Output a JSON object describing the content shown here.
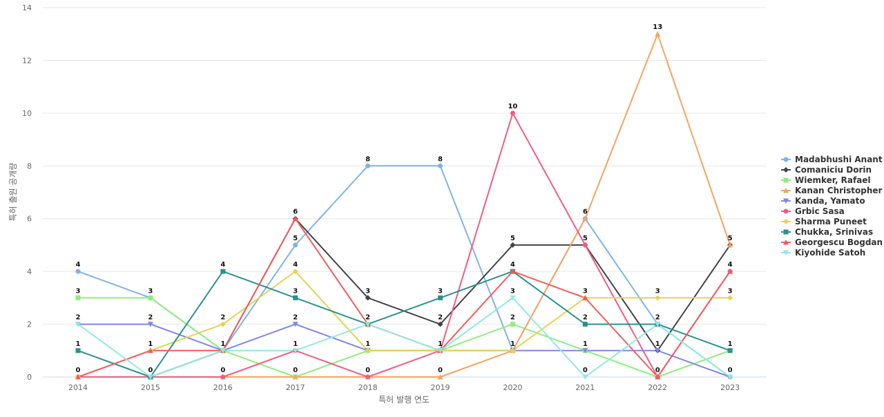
{
  "chart_data": {
    "type": "line",
    "title": "",
    "xlabel": "특허 발행 연도",
    "ylabel": "특허 출원 공개량",
    "categories": [
      "2014",
      "2015",
      "2016",
      "2017",
      "2018",
      "2019",
      "2020",
      "2021",
      "2022",
      "2023"
    ],
    "ylim": [
      0,
      14
    ],
    "yticks": [
      "0",
      "2",
      "4",
      "6",
      "8",
      "10",
      "12",
      "14"
    ],
    "grid": true,
    "legend_position": "right",
    "series": [
      {
        "name": "Madabhushi Anant",
        "color": "#7eb3e6",
        "marker": "circle",
        "values": [
          4,
          3,
          1,
          5,
          8,
          8,
          1,
          6,
          2,
          0
        ]
      },
      {
        "name": "Comaniciu Dorin",
        "color": "#434348",
        "marker": "diamond",
        "values": [
          0,
          0,
          1,
          6,
          3,
          2,
          5,
          5,
          1,
          5
        ]
      },
      {
        "name": "Wiemker, Rafael",
        "color": "#90ed7d",
        "marker": "square",
        "values": [
          3,
          3,
          1,
          0,
          1,
          1,
          2,
          1,
          0,
          1
        ]
      },
      {
        "name": "Kanan Christopher",
        "color": "#f7a35c",
        "marker": "triangle",
        "values": [
          0,
          0,
          0,
          0,
          0,
          0,
          1,
          6,
          13,
          5
        ]
      },
      {
        "name": "Kanda, Yamato",
        "color": "#8085e9",
        "marker": "triangle-down",
        "values": [
          2,
          2,
          1,
          2,
          1,
          1,
          1,
          1,
          1,
          0
        ]
      },
      {
        "name": "Grbic Sasa",
        "color": "#f15c80",
        "marker": "circle",
        "values": [
          0,
          0,
          0,
          1,
          0,
          1,
          10,
          5,
          0,
          4
        ]
      },
      {
        "name": "Sharma Puneet",
        "color": "#e4d354",
        "marker": "diamond",
        "values": [
          0,
          1,
          2,
          4,
          1,
          1,
          1,
          3,
          3,
          3
        ]
      },
      {
        "name": "Chukka, Srinivas",
        "color": "#2b908f",
        "marker": "square",
        "values": [
          1,
          0,
          4,
          3,
          2,
          3,
          4,
          2,
          2,
          1
        ]
      },
      {
        "name": "Georgescu Bogdan",
        "color": "#f45b5b",
        "marker": "triangle",
        "values": [
          0,
          1,
          1,
          6,
          2,
          1,
          4,
          3,
          0,
          4
        ]
      },
      {
        "name": "Kiyohide Satoh",
        "color": "#91e8e1",
        "marker": "triangle-down",
        "values": [
          2,
          0,
          1,
          1,
          2,
          1,
          3,
          0,
          2,
          0
        ]
      }
    ],
    "data_labels": {
      "values": [
        "4",
        "0",
        "4",
        "6",
        "8",
        "8",
        "10",
        "6",
        "13",
        "5",
        "3",
        "3",
        "2",
        "5",
        "3",
        "3",
        "5",
        "5",
        "3",
        "4",
        "2",
        "2",
        "1",
        "4",
        "2",
        "2",
        "4",
        "3",
        "2",
        "4",
        "1",
        "1",
        "0",
        "3",
        "1",
        "1",
        "3",
        "1",
        "3",
        "3",
        "0",
        "0",
        "0",
        "2",
        "1",
        "1",
        "2",
        "2",
        "1",
        "1",
        "0",
        "1",
        "0",
        "0",
        "1",
        "0",
        "0",
        "0",
        "0"
      ]
    }
  }
}
